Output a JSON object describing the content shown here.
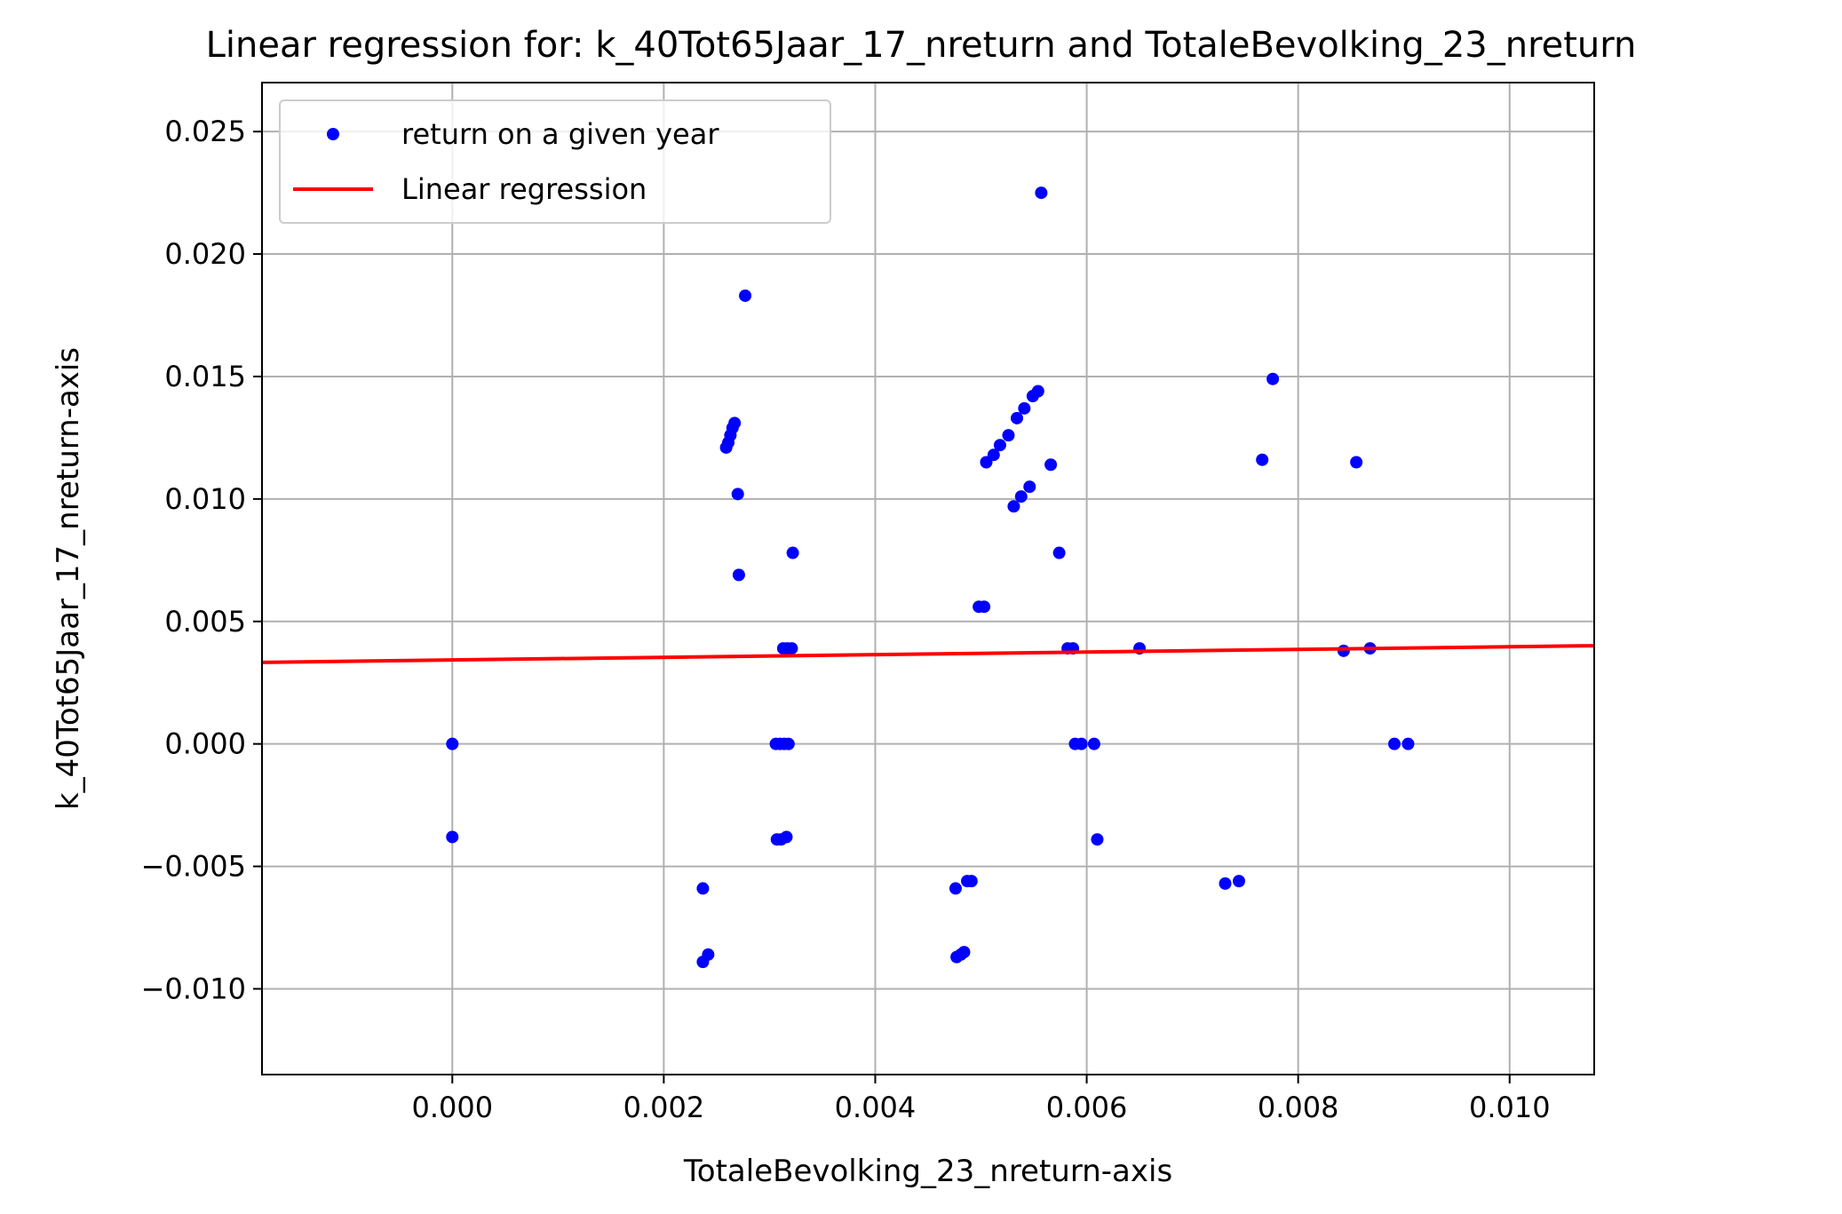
{
  "chart_data": {
    "type": "scatter",
    "title": "Linear regression for: k_40Tot65Jaar_17_nreturn and TotaleBevolking_23_nreturn",
    "xlabel": "TotaleBevolking_23_nreturn-axis",
    "ylabel": "k_40Tot65Jaar_17_nreturn-axis",
    "xlim": [
      -0.0018,
      0.0108
    ],
    "ylim": [
      -0.0135,
      0.027
    ],
    "xticks": [
      0.0,
      0.002,
      0.004,
      0.006,
      0.008,
      0.01
    ],
    "xtick_labels": [
      "0.000",
      "0.002",
      "0.004",
      "0.006",
      "0.008",
      "0.010"
    ],
    "yticks": [
      -0.01,
      -0.005,
      0.0,
      0.005,
      0.01,
      0.015,
      0.02,
      0.025
    ],
    "ytick_labels": [
      "−0.010",
      "−0.005",
      "0.000",
      "0.005",
      "0.010",
      "0.015",
      "0.020",
      "0.025"
    ],
    "grid": true,
    "legend_position": "top-left",
    "series": [
      {
        "name": "return on a given year",
        "kind": "scatter",
        "color": "#0000ff",
        "points": [
          [
            0.0,
            0.0
          ],
          [
            0.0,
            -0.0038
          ],
          [
            0.00237,
            -0.0059
          ],
          [
            0.00237,
            -0.0089
          ],
          [
            0.00242,
            -0.0086
          ],
          [
            0.00259,
            0.0121
          ],
          [
            0.00261,
            0.0123
          ],
          [
            0.00263,
            0.0126
          ],
          [
            0.00265,
            0.0129
          ],
          [
            0.00267,
            0.0131
          ],
          [
            0.0027,
            0.0102
          ],
          [
            0.00271,
            0.0069
          ],
          [
            0.00277,
            0.0183
          ],
          [
            0.00306,
            0.0
          ],
          [
            0.0031,
            0.0
          ],
          [
            0.00314,
            0.0
          ],
          [
            0.00318,
            0.0
          ],
          [
            0.00307,
            -0.0039
          ],
          [
            0.00311,
            -0.0039
          ],
          [
            0.00316,
            -0.0038
          ],
          [
            0.00313,
            0.0039
          ],
          [
            0.00317,
            0.0039
          ],
          [
            0.00321,
            0.0039
          ],
          [
            0.00322,
            0.0078
          ],
          [
            0.00476,
            -0.0059
          ],
          [
            0.00487,
            -0.0056
          ],
          [
            0.00491,
            -0.0056
          ],
          [
            0.00477,
            -0.0087
          ],
          [
            0.00481,
            -0.0086
          ],
          [
            0.00484,
            -0.0085
          ],
          [
            0.00498,
            0.0056
          ],
          [
            0.00503,
            0.0056
          ],
          [
            0.00505,
            0.0115
          ],
          [
            0.00512,
            0.0118
          ],
          [
            0.00518,
            0.0122
          ],
          [
            0.00526,
            0.0126
          ],
          [
            0.00534,
            0.0133
          ],
          [
            0.00541,
            0.0137
          ],
          [
            0.00549,
            0.0142
          ],
          [
            0.00554,
            0.0144
          ],
          [
            0.00531,
            0.0097
          ],
          [
            0.00538,
            0.0101
          ],
          [
            0.00546,
            0.0105
          ],
          [
            0.00557,
            0.0225
          ],
          [
            0.00566,
            0.0114
          ],
          [
            0.00574,
            0.0078
          ],
          [
            0.00582,
            0.0039
          ],
          [
            0.00587,
            0.0039
          ],
          [
            0.00589,
            0.0
          ],
          [
            0.00595,
            0.0
          ],
          [
            0.00607,
            0.0
          ],
          [
            0.0061,
            -0.0039
          ],
          [
            0.0065,
            0.0039
          ],
          [
            0.00731,
            -0.0057
          ],
          [
            0.00744,
            -0.0056
          ],
          [
            0.00766,
            0.0116
          ],
          [
            0.00776,
            0.0149
          ],
          [
            0.00843,
            0.0038
          ],
          [
            0.00855,
            0.0115
          ],
          [
            0.00868,
            0.0039
          ],
          [
            0.00891,
            0.0
          ],
          [
            0.00904,
            0.0
          ]
        ]
      },
      {
        "name": "Linear regression",
        "kind": "line",
        "color": "#ff0000",
        "x": [
          -0.0018,
          0.0108
        ],
        "y": [
          0.00333,
          0.00401
        ]
      }
    ]
  }
}
